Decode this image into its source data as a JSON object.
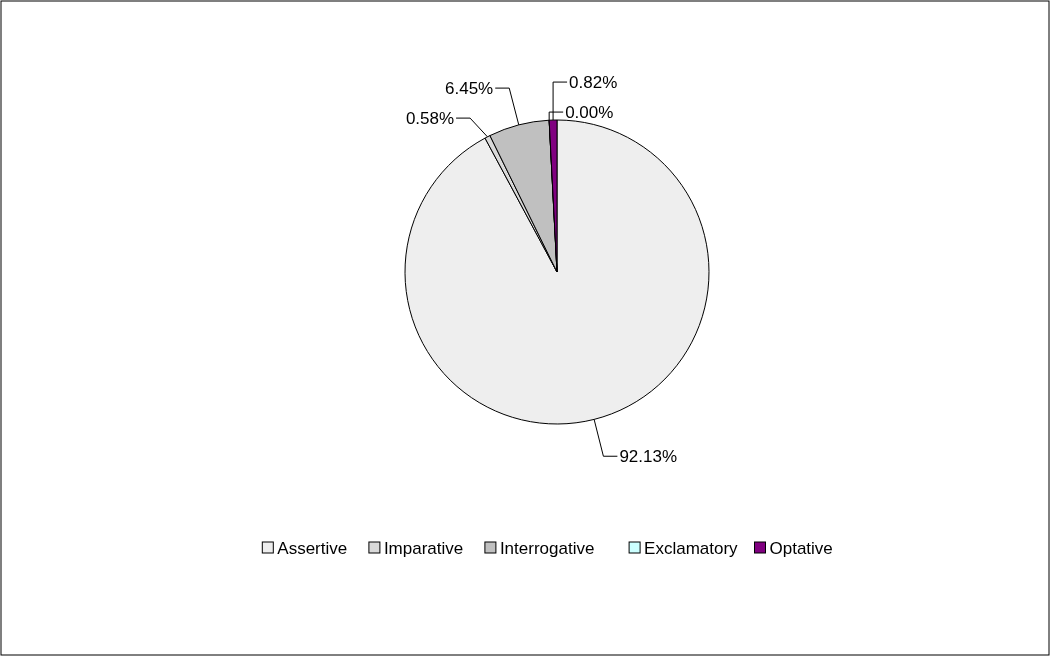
{
  "chart_data": {
    "type": "pie",
    "categories": [
      "Assertive",
      "Imparative",
      "Interrogative",
      "Exclamatory",
      "Optative"
    ],
    "values": [
      92.13,
      0.58,
      6.45,
      0.0,
      0.82
    ],
    "value_labels": [
      "92.13%",
      "0.58%",
      "6.45%",
      "0.00%",
      "0.82%"
    ],
    "colors": [
      "#eeeeee",
      "#d9d9d9",
      "#c0c0c0",
      "#ccffff",
      "#800080"
    ],
    "legend": "bottom"
  }
}
